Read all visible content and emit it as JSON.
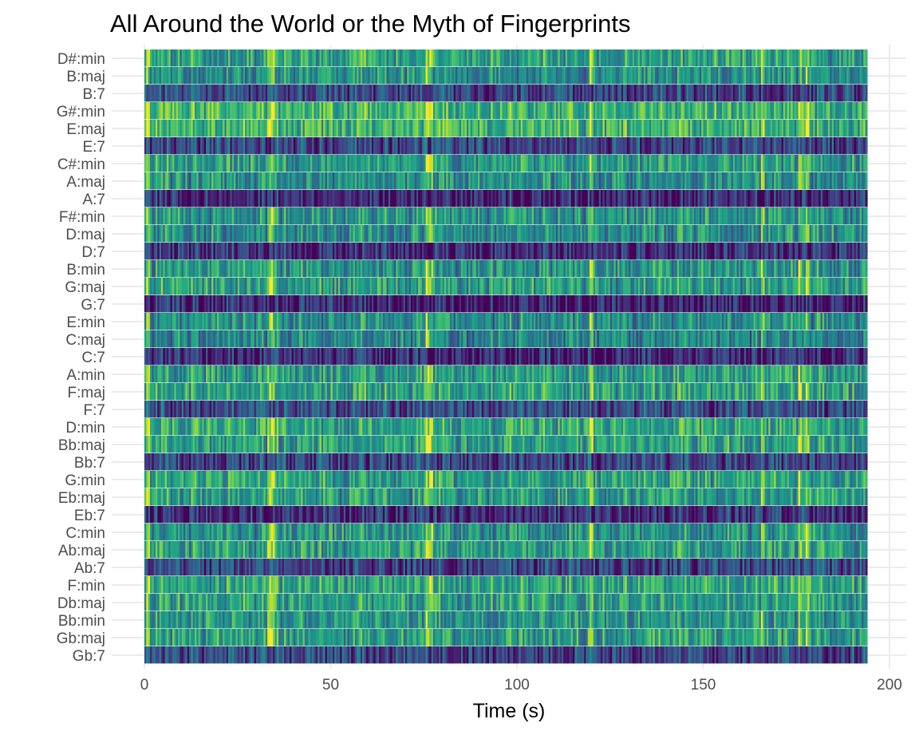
{
  "chart_data": {
    "type": "heatmap",
    "title": "All Around the World or the Myth of Fingerprints",
    "xlabel": "Time (s)",
    "ylabel": "",
    "xlim": [
      0,
      200
    ],
    "x_data_range": [
      0,
      194
    ],
    "x_ticks": [
      "0",
      "50",
      "100",
      "150",
      "200"
    ],
    "grid": true,
    "colormap": "viridis",
    "categories": [
      "D#:min",
      "B:maj",
      "B:7",
      "G#:min",
      "E:maj",
      "E:7",
      "C#:min",
      "A:maj",
      "A:7",
      "F#:min",
      "D:maj",
      "D:7",
      "B:min",
      "G:maj",
      "G:7",
      "E:min",
      "C:maj",
      "C:7",
      "A:min",
      "F:maj",
      "F:7",
      "D:min",
      "Bb:maj",
      "Bb:7",
      "G:min",
      "Eb:maj",
      "Eb:7",
      "C:min",
      "Ab:maj",
      "Ab:7",
      "F:min",
      "Db:maj",
      "Bb:min",
      "Gb:maj",
      "Gb:7"
    ],
    "row_mean_levels": [
      0.58,
      0.5,
      0.22,
      0.66,
      0.64,
      0.22,
      0.55,
      0.5,
      0.12,
      0.52,
      0.5,
      0.15,
      0.52,
      0.56,
      0.12,
      0.5,
      0.45,
      0.12,
      0.55,
      0.58,
      0.25,
      0.6,
      0.57,
      0.22,
      0.58,
      0.55,
      0.15,
      0.52,
      0.56,
      0.22,
      0.58,
      0.56,
      0.52,
      0.56,
      0.22
    ],
    "peak_times": [
      1,
      33.5,
      34.2,
      76,
      76.8,
      120,
      166,
      176,
      178
    ]
  }
}
